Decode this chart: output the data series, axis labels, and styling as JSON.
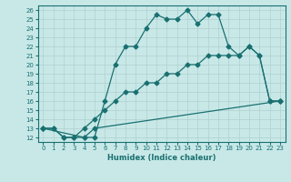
{
  "title": "",
  "xlabel": "Humidex (Indice chaleur)",
  "bg_color": "#c8e8e8",
  "line_color": "#1a7070",
  "grid_color": "#b0d0d0",
  "xlim": [
    -0.5,
    23.5
  ],
  "ylim": [
    11.5,
    26.5
  ],
  "xticks": [
    0,
    1,
    2,
    3,
    4,
    5,
    6,
    7,
    8,
    9,
    10,
    11,
    12,
    13,
    14,
    15,
    16,
    17,
    18,
    19,
    20,
    21,
    22,
    23
  ],
  "yticks": [
    12,
    13,
    14,
    15,
    16,
    17,
    18,
    19,
    20,
    21,
    22,
    23,
    24,
    25,
    26
  ],
  "line1_x": [
    0,
    1,
    2,
    3,
    4,
    5,
    6,
    7,
    8,
    9,
    10,
    11,
    12,
    13,
    14,
    15,
    16,
    17,
    18,
    19,
    20,
    21,
    22,
    23
  ],
  "line1_y": [
    13,
    13,
    12,
    12,
    12,
    12,
    16,
    20,
    22,
    22,
    24,
    25.5,
    25,
    25,
    26,
    24.5,
    25.5,
    25.5,
    22,
    21,
    22,
    21,
    16,
    16
  ],
  "line2_x": [
    0,
    1,
    2,
    3,
    4,
    5,
    6,
    7,
    8,
    9,
    10,
    11,
    12,
    13,
    14,
    15,
    16,
    17,
    18,
    19,
    20,
    21,
    22,
    23
  ],
  "line2_y": [
    13,
    13,
    12,
    12,
    13,
    14,
    15,
    16,
    17,
    17,
    18,
    18,
    19,
    19,
    20,
    20,
    21,
    21,
    21,
    21,
    22,
    21,
    16,
    16
  ],
  "line3_x": [
    0,
    4,
    5,
    23
  ],
  "line3_y": [
    13,
    12,
    13,
    16
  ],
  "tick_fontsize": 5,
  "xlabel_fontsize": 6,
  "marker_size": 2.5,
  "linewidth": 0.9
}
